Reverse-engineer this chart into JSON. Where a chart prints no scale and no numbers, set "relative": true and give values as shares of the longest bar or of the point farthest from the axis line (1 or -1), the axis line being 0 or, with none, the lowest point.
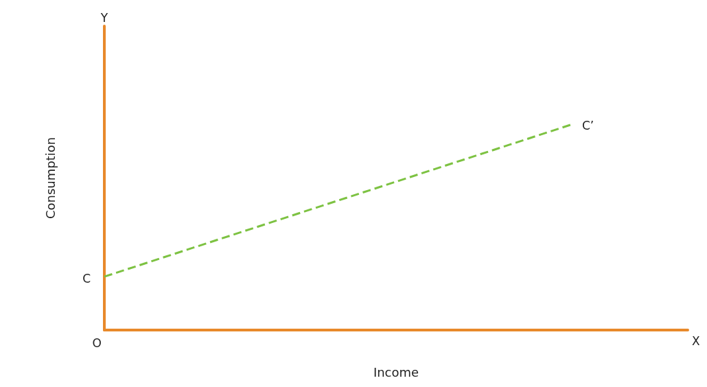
{
  "chart_data": {
    "type": "line",
    "relative": true,
    "xlabel": "Income",
    "ylabel": "Consumption",
    "categories": [
      null,
      null,
      null,
      null,
      null,
      null
    ],
    "series": [
      {
        "color": "#7dc242",
        "values": [
          0.26,
          null,
          null,
          null,
          1,
          null
        ]
      }
    ],
    "line_style": "dashed",
    "marker": "none",
    "grid": false,
    "annotations": [
      "Y",
      "X",
      "O",
      "C",
      "C’"
    ]
  }
}
